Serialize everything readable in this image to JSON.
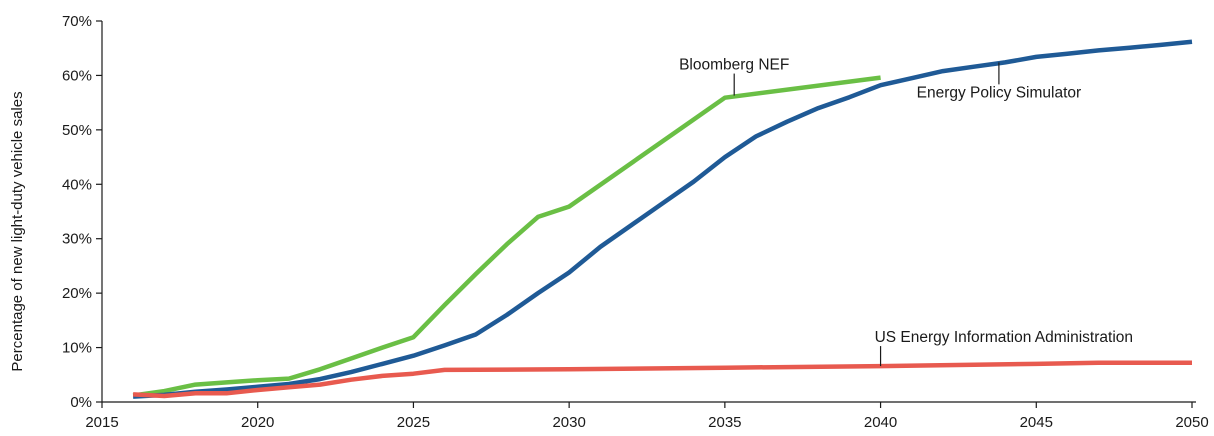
{
  "chart_data": {
    "type": "line",
    "title": "",
    "xlabel": "",
    "ylabel": "Percentage of new light-duty vehicle sales",
    "xlim": [
      2015,
      2050
    ],
    "ylim": [
      0,
      70
    ],
    "x_ticks": [
      2015,
      2020,
      2025,
      2030,
      2035,
      2040,
      2045,
      2050
    ],
    "x_tick_labels": [
      "2015",
      "2020",
      "2025",
      "2030",
      "2035",
      "2040",
      "2045",
      "2050"
    ],
    "y_ticks": [
      0,
      10,
      20,
      30,
      40,
      50,
      60,
      70
    ],
    "y_tick_labels": [
      "0%",
      "10%",
      "20%",
      "30%",
      "40%",
      "50%",
      "60%",
      "70%"
    ],
    "grid": false,
    "legend": "none (series labeled directly on lines)",
    "series": [
      {
        "name": "Bloomberg NEF",
        "color": "#6abf45",
        "points": [
          [
            2016,
            1.2
          ],
          [
            2017,
            2.0
          ],
          [
            2018,
            3.2
          ],
          [
            2019,
            3.6
          ],
          [
            2020,
            4.0
          ],
          [
            2021,
            4.3
          ],
          [
            2022,
            6.0
          ],
          [
            2023,
            8.0
          ],
          [
            2024,
            10.0
          ],
          [
            2025,
            11.9
          ],
          [
            2026,
            17.8
          ],
          [
            2027,
            23.5
          ],
          [
            2028,
            29.0
          ],
          [
            2029,
            34.0
          ],
          [
            2030,
            35.9
          ],
          [
            2035,
            55.9
          ],
          [
            2040,
            59.6
          ]
        ]
      },
      {
        "name": "Energy Policy Simulator",
        "color": "#1f5a96",
        "points": [
          [
            2016,
            1.0
          ],
          [
            2017,
            1.3
          ],
          [
            2018,
            1.9
          ],
          [
            2019,
            2.3
          ],
          [
            2020,
            2.8
          ],
          [
            2021,
            3.3
          ],
          [
            2022,
            4.2
          ],
          [
            2023,
            5.5
          ],
          [
            2024,
            7.0
          ],
          [
            2025,
            8.5
          ],
          [
            2026,
            10.4
          ],
          [
            2027,
            12.4
          ],
          [
            2028,
            16.0
          ],
          [
            2029,
            20.0
          ],
          [
            2030,
            23.8
          ],
          [
            2031,
            28.5
          ],
          [
            2032,
            32.5
          ],
          [
            2033,
            36.5
          ],
          [
            2034,
            40.5
          ],
          [
            2035,
            45.0
          ],
          [
            2036,
            48.8
          ],
          [
            2037,
            51.5
          ],
          [
            2038,
            54.0
          ],
          [
            2039,
            56.0
          ],
          [
            2040,
            58.2
          ],
          [
            2041,
            59.5
          ],
          [
            2042,
            60.8
          ],
          [
            2043,
            61.6
          ],
          [
            2044,
            62.4
          ],
          [
            2045,
            63.4
          ],
          [
            2046,
            64.0
          ],
          [
            2047,
            64.6
          ],
          [
            2048,
            65.1
          ],
          [
            2049,
            65.6
          ],
          [
            2050,
            66.2
          ]
        ]
      },
      {
        "name": "US Energy Information Administration",
        "color": "#e85a4f",
        "points": [
          [
            2016,
            1.4
          ],
          [
            2017,
            1.1
          ],
          [
            2018,
            1.6
          ],
          [
            2019,
            1.6
          ],
          [
            2020,
            2.2
          ],
          [
            2021,
            2.7
          ],
          [
            2022,
            3.2
          ],
          [
            2023,
            4.1
          ],
          [
            2024,
            4.8
          ],
          [
            2025,
            5.2
          ],
          [
            2026,
            5.9
          ],
          [
            2030,
            6.0
          ],
          [
            2035,
            6.3
          ],
          [
            2040,
            6.6
          ],
          [
            2045,
            7.0
          ],
          [
            2047,
            7.2
          ],
          [
            2050,
            7.2
          ]
        ]
      }
    ],
    "annotations": [
      {
        "text": "Bloomberg NEF",
        "series": "Bloomberg NEF",
        "x": 2035.3,
        "y": 56.3
      },
      {
        "text": "Energy Policy Simulator",
        "series": "Energy Policy Simulator",
        "x": 2043.8,
        "y": 62.4
      },
      {
        "text": "US Energy Information Administration",
        "series": "US Energy Information Administration",
        "x": 2040,
        "y": 6.6
      }
    ]
  }
}
